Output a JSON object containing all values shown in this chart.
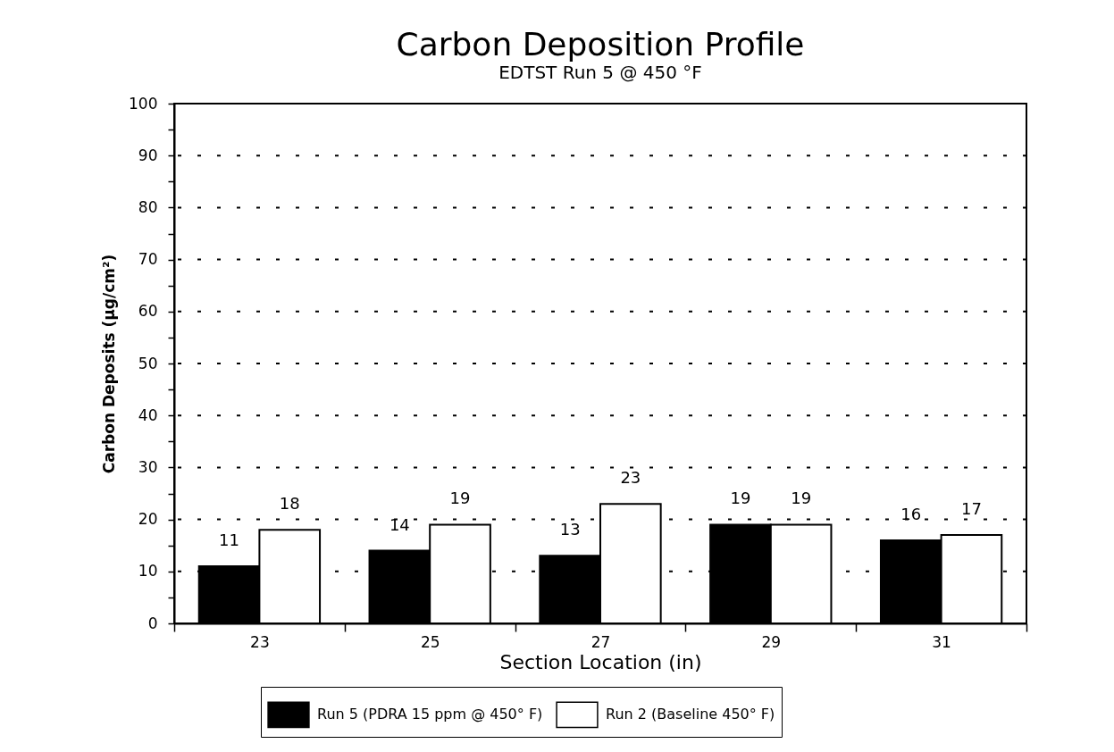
{
  "chart_data": {
    "type": "bar",
    "title": "Carbon Deposition Profile",
    "subtitle": "EDTST Run 5 @ 450 °F",
    "xlabel": "Section Location (in)",
    "ylabel": "Carbon Deposits (µg/cm²)",
    "categories": [
      "23",
      "25",
      "27",
      "29",
      "31"
    ],
    "series": [
      {
        "name": "Run 5 (PDRA 15 ppm @ 450° F)",
        "color": "#000000",
        "values": [
          11,
          14,
          13,
          19,
          16
        ]
      },
      {
        "name": "Run 2 (Baseline 450° F)",
        "color": "#ffffff",
        "values": [
          18,
          19,
          23,
          19,
          17
        ]
      }
    ],
    "ylim": [
      0,
      100
    ],
    "yticks": [
      0,
      {
        "value": 5,
        "label": null
      },
      10,
      {
        "value": 15,
        "label": null
      },
      20,
      {
        "value": 25,
        "label": null
      },
      30,
      {
        "value": 35,
        "label": null
      },
      40,
      {
        "value": 45,
        "label": null
      },
      50,
      {
        "value": 55,
        "label": null
      },
      60,
      {
        "value": 65,
        "label": null
      },
      70,
      {
        "value": 75,
        "label": null
      },
      80,
      {
        "value": 85,
        "label": null
      },
      90,
      {
        "value": 95,
        "label": null
      },
      100
    ],
    "grid": "y",
    "legend": "bottom",
    "data_labels": true
  }
}
